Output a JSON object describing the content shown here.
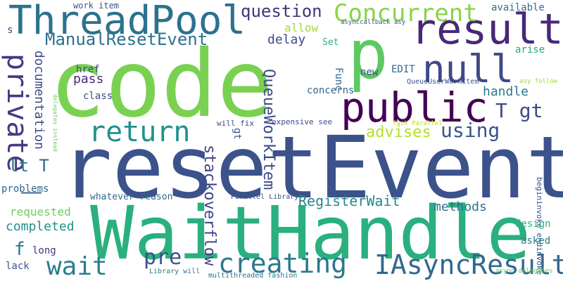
{
  "words": [
    {
      "text": "code",
      "color": "#7ad151"
    },
    {
      "text": "resetEvent",
      "color": "#3b528b"
    },
    {
      "text": "WaitHandle",
      "color": "#2ab07f"
    },
    {
      "text": "p",
      "color": "#5ec962"
    },
    {
      "text": "ThreadPool",
      "color": "#2c728e"
    },
    {
      "text": "result",
      "color": "#482878"
    },
    {
      "text": "public",
      "color": "#440154"
    },
    {
      "text": "null",
      "color": "#3e4989"
    },
    {
      "text": "Concurrent",
      "color": "#86d549"
    },
    {
      "text": "return",
      "color": "#21918c"
    },
    {
      "text": "IAsyncResult",
      "color": "#31688e"
    },
    {
      "text": "creating",
      "color": "#2a788e"
    },
    {
      "text": "wait",
      "color": "#287d8e"
    },
    {
      "text": "question",
      "color": "#46327e"
    },
    {
      "text": "ManualResetEvent",
      "color": "#2d708e"
    },
    {
      "text": "private",
      "color": "#443983"
    },
    {
      "text": "_",
      "color": "#355f8d"
    },
    {
      "text": "pre",
      "color": "#3b528b"
    },
    {
      "text": "using",
      "color": "#3b528b"
    },
    {
      "text": "T gt",
      "color": "#3e4a89"
    },
    {
      "text": "lt T",
      "color": "#2c728e"
    },
    {
      "text": "advises",
      "color": "#b5de2b"
    },
    {
      "text": "QueueWorkItem",
      "color": "#3e4989"
    },
    {
      "text": "stackoverflow",
      "color": "#414487"
    },
    {
      "text": "RegisterWait",
      "color": "#24878e"
    },
    {
      "text": "methods",
      "color": "#2c728e"
    },
    {
      "text": "completed",
      "color": "#21918c"
    },
    {
      "text": "requested",
      "color": "#6ccd5a"
    },
    {
      "text": "handle",
      "color": "#2a788e"
    },
    {
      "text": "documentation",
      "color": "#3e4a89"
    },
    {
      "text": "pass",
      "color": "#482475"
    },
    {
      "text": "delay",
      "color": "#3e4989"
    },
    {
      "text": "allow",
      "color": "#9fda3a"
    },
    {
      "text": "f",
      "color": "#2c728e"
    },
    {
      "text": "work item",
      "color": "#3b528b"
    },
    {
      "text": "available",
      "color": "#2c728e"
    },
    {
      "text": "asynccallback asy",
      "color": "#3b528b"
    },
    {
      "text": "Set",
      "color": "#2db27d"
    },
    {
      "text": "arise",
      "color": "#21a685"
    },
    {
      "text": "href",
      "color": "#3e4989"
    },
    {
      "text": "class",
      "color": "#3e4989"
    },
    {
      "text": "concerns",
      "color": "#31688e"
    },
    {
      "text": "new",
      "color": "#3b528b"
    },
    {
      "text": "EDIT",
      "color": "#31688e"
    },
    {
      "text": "Func",
      "color": "#31688e"
    },
    {
      "text": "QueueUserWorkItem",
      "color": "#3b528b"
    },
    {
      "text": "gt",
      "color": "#3b528b"
    },
    {
      "text": "will fix",
      "color": "#3e4989"
    },
    {
      "text": "expensive see",
      "color": "#3e4989"
    },
    {
      "text": "Task Parallel",
      "color": "#bddf26"
    },
    {
      "text": "asy follow",
      "color": "#9fda3a"
    },
    {
      "text": "begininvoke endinvoke",
      "color": "#3b528b"
    },
    {
      "text": "delegates instead",
      "color": "#6ccd5a"
    },
    {
      "text": "problems",
      "color": "#31688e"
    },
    {
      "text": "whatever reason",
      "color": "#31688e"
    },
    {
      "text": "Parallel Library",
      "color": "#3b528b"
    },
    {
      "text": "design",
      "color": "#2db27d"
    },
    {
      "text": "asked",
      "color": "#2a788e"
    },
    {
      "text": "long",
      "color": "#46327e"
    },
    {
      "text": "lack",
      "color": "#3b528b"
    },
    {
      "text": "Library will",
      "color": "#2a788e"
    },
    {
      "text": "multithreaded fashion",
      "color": "#2c728e"
    },
    {
      "text": "async delegates",
      "color": "#5ec962"
    },
    {
      "text": "s",
      "color": "#3e4989"
    }
  ]
}
